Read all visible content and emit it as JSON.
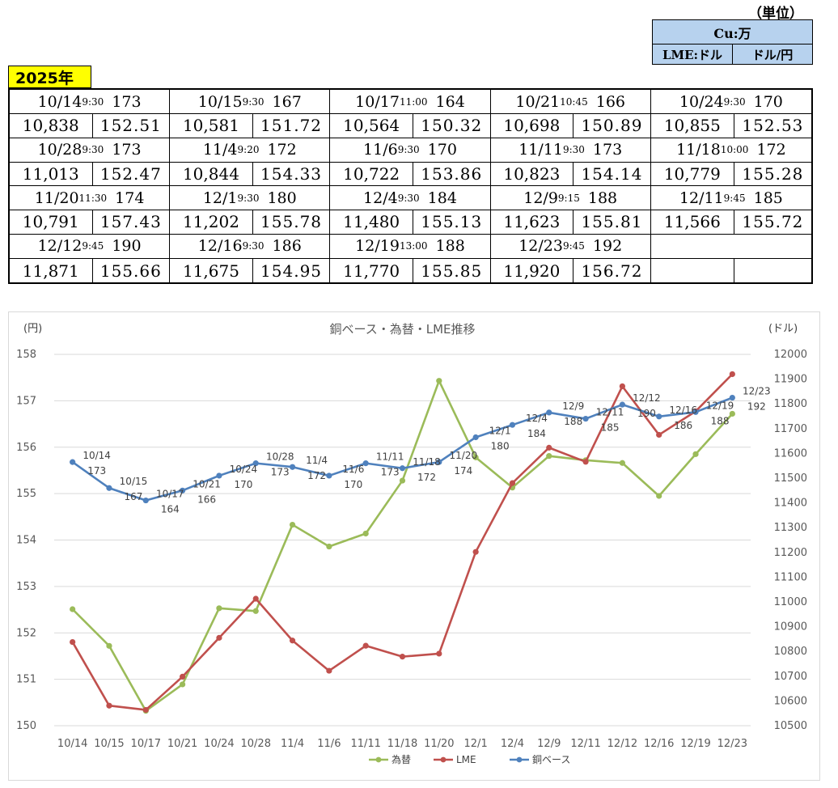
{
  "unit": {
    "title": "（単位）",
    "row1": "Cu:万",
    "lme": "LME:ドル",
    "fx": "ドル/円"
  },
  "year": "2025年",
  "entries": [
    {
      "date": "10/14",
      "time": "9:30",
      "cu": "173",
      "lme": "10,838",
      "fx": "152.51"
    },
    {
      "date": "10/15",
      "time": "9:30",
      "cu": "167",
      "lme": "10,581",
      "fx": "151.72"
    },
    {
      "date": "10/17",
      "time": "11:00",
      "cu": "164",
      "lme": "10,564",
      "fx": "150.32"
    },
    {
      "date": "10/21",
      "time": "10:45",
      "cu": "166",
      "lme": "10,698",
      "fx": "150.89"
    },
    {
      "date": "10/24",
      "time": "9:30",
      "cu": "170",
      "lme": "10,855",
      "fx": "152.53"
    },
    {
      "date": "10/28",
      "time": "9:30",
      "cu": "173",
      "lme": "11,013",
      "fx": "152.47"
    },
    {
      "date": "11/4",
      "time": "9:20",
      "cu": "172",
      "lme": "10,844",
      "fx": "154.33"
    },
    {
      "date": "11/6",
      "time": "9:30",
      "cu": "170",
      "lme": "10,722",
      "fx": "153.86"
    },
    {
      "date": "11/11",
      "time": "9:30",
      "cu": "173",
      "lme": "10,823",
      "fx": "154.14"
    },
    {
      "date": "11/18",
      "time": "10:00",
      "cu": "172",
      "lme": "10,779",
      "fx": "155.28"
    },
    {
      "date": "11/20",
      "time": "11:30",
      "cu": "174",
      "lme": "10,791",
      "fx": "157.43"
    },
    {
      "date": "12/1",
      "time": "9:30",
      "cu": "180",
      "lme": "11,202",
      "fx": "155.78"
    },
    {
      "date": "12/4",
      "time": "9:30",
      "cu": "184",
      "lme": "11,480",
      "fx": "155.13"
    },
    {
      "date": "12/9",
      "time": "9:15",
      "cu": "188",
      "lme": "11,623",
      "fx": "155.81"
    },
    {
      "date": "12/11",
      "time": "9:45",
      "cu": "185",
      "lme": "11,566",
      "fx": "155.72"
    },
    {
      "date": "12/12",
      "time": "9:45",
      "cu": "190",
      "lme": "11,871",
      "fx": "155.66"
    },
    {
      "date": "12/16",
      "time": "9:30",
      "cu": "186",
      "lme": "11,675",
      "fx": "154.95"
    },
    {
      "date": "12/19",
      "time": "13:00",
      "cu": "188",
      "lme": "11,770",
      "fx": "155.85"
    },
    {
      "date": "12/23",
      "time": "9:45",
      "cu": "192",
      "lme": "11,920",
      "fx": "156.72"
    }
  ],
  "chart_data": {
    "type": "line",
    "title": "銅ベース・為替・LME推移",
    "ylabel_left": "(円)",
    "ylabel_right": "(ドル)",
    "categories": [
      "10/14",
      "10/15",
      "10/17",
      "10/21",
      "10/24",
      "10/28",
      "11/4",
      "11/6",
      "11/11",
      "11/18",
      "11/20",
      "12/1",
      "12/4",
      "12/9",
      "12/11",
      "12/12",
      "12/16",
      "12/19",
      "12/23"
    ],
    "ylim_left": [
      150,
      158
    ],
    "yticks_left": [
      150,
      151,
      152,
      153,
      154,
      155,
      156,
      157,
      158
    ],
    "ylim_right": [
      10500,
      12000
    ],
    "yticks_right": [
      10500,
      10600,
      10700,
      10800,
      10900,
      11000,
      11100,
      11200,
      11300,
      11400,
      11500,
      11600,
      11700,
      11800,
      11900,
      12000
    ],
    "grid": true,
    "legend_position": "bottom",
    "series": [
      {
        "name": "為替",
        "axis": "left",
        "color": "#9bbb59",
        "values": [
          152.51,
          151.72,
          150.32,
          150.89,
          152.53,
          152.47,
          154.33,
          153.86,
          154.14,
          155.28,
          157.43,
          155.78,
          155.13,
          155.81,
          155.72,
          155.66,
          154.95,
          155.85,
          156.72
        ]
      },
      {
        "name": "LME",
        "axis": "right",
        "color": "#c0504d",
        "values": [
          10838,
          10581,
          10564,
          10698,
          10855,
          11013,
          10844,
          10722,
          10823,
          10779,
          10791,
          11202,
          11480,
          11623,
          11566,
          11871,
          11675,
          11770,
          11920
        ]
      },
      {
        "name": "銅ベース",
        "axis": "right",
        "color": "#4f81bd",
        "values": [
          11565,
          11460,
          11410,
          11450,
          11510,
          11560,
          11545,
          11510,
          11560,
          11540,
          11565,
          11665,
          11715,
          11765,
          11740,
          11797,
          11749,
          11767,
          11825
        ],
        "labels": [
          "10/14\n173",
          "10/15\n167",
          "10/17\n164",
          "10/21\n166",
          "10/24\n170",
          "10/28\n173",
          "11/4\n172",
          "11/6\n170",
          "11/11\n173",
          "11/18\n172",
          "11/20\n174",
          "12/1\n180",
          "12/4\n184",
          "12/9\n188",
          "12/11\n185",
          "12/12\n190",
          "12/16\n186",
          "12/19\n188",
          "12/23\n192"
        ]
      }
    ]
  }
}
